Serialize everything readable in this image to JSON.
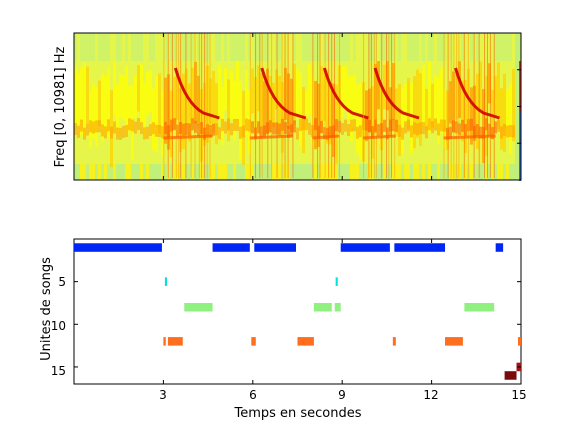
{
  "chart_data": [
    {
      "type": "heatmap",
      "title": "",
      "ylabel": "Freq [0, 10981] Hz",
      "xlim": [
        0,
        15
      ],
      "colormap": "jet",
      "colormap_stops": [
        "#ffff00",
        "#ffd200",
        "#ff9a00",
        "#ff5a00",
        "#d00000",
        "#900000"
      ],
      "noise_colors": [
        "#c0f07a",
        "#e6f54a",
        "#f7f21e"
      ],
      "loud_segments_sec": [
        [
          3.0,
          4.65
        ],
        [
          5.9,
          7.35
        ],
        [
          8.0,
          8.9
        ],
        [
          9.7,
          10.8
        ],
        [
          12.4,
          14.15
        ]
      ],
      "colorbar_edge": [
        "#2f6ad6",
        "#d03030"
      ]
    },
    {
      "type": "scatter",
      "title": "",
      "xlabel": "Temps en secondes",
      "ylabel": "Unites de songs",
      "xlim": [
        0,
        15
      ],
      "ylim": [
        0,
        17
      ],
      "y_reversed": true,
      "xticks": [
        "3",
        "6",
        "9",
        "12",
        "15"
      ],
      "yticks": [
        "5",
        "10",
        "15"
      ],
      "series": [
        {
          "unit": 1,
          "color": "#0026f5",
          "segments": [
            [
              0.0,
              2.95
            ],
            [
              4.65,
              5.9
            ],
            [
              6.05,
              7.45
            ],
            [
              8.95,
              10.6
            ],
            [
              10.75,
              12.45
            ],
            [
              14.15,
              14.4
            ]
          ]
        },
        {
          "unit": 5,
          "color": "#00e0e0",
          "segments": [
            [
              3.05,
              3.12
            ],
            [
              8.78,
              8.85
            ]
          ]
        },
        {
          "unit": 8,
          "color": "#90f080",
          "segments": [
            [
              3.7,
              4.65
            ],
            [
              8.05,
              8.65
            ],
            [
              8.75,
              8.95
            ],
            [
              13.1,
              14.1
            ]
          ]
        },
        {
          "unit": 12,
          "color": "#ff6e1e",
          "segments": [
            [
              3.0,
              3.08
            ],
            [
              3.15,
              3.65
            ],
            [
              5.95,
              6.1
            ],
            [
              7.5,
              8.05
            ],
            [
              10.7,
              10.8
            ],
            [
              12.45,
              13.05
            ],
            [
              14.9,
              15.0
            ]
          ]
        },
        {
          "unit": 15,
          "color": "#a41414",
          "segments": [
            [
              14.85,
              15.0
            ]
          ]
        },
        {
          "unit": 16,
          "color": "#7c0a0a",
          "segments": [
            [
              14.45,
              14.85
            ]
          ]
        }
      ]
    }
  ]
}
